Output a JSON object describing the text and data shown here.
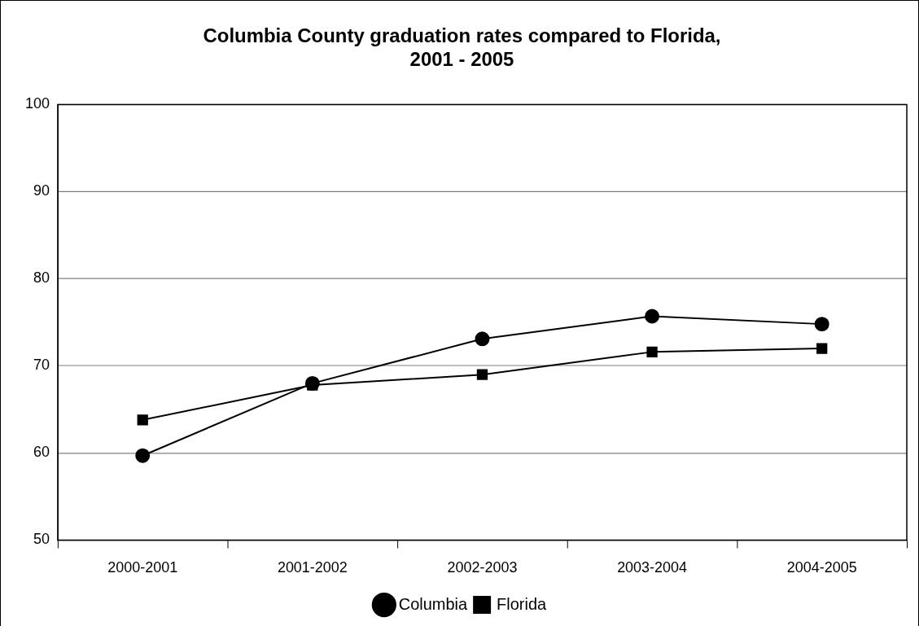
{
  "chart_data": {
    "type": "line",
    "title": [
      "Columbia County graduation rates compared to Florida,",
      "2001 - 2005"
    ],
    "categories": [
      "2000-2001",
      "2001-2002",
      "2002-2003",
      "2003-2004",
      "2004-2005"
    ],
    "series": [
      {
        "name": "Columbia",
        "color": "#000000",
        "marker": "circle",
        "values": [
          59.7,
          68.0,
          73.1,
          75.7,
          74.8
        ]
      },
      {
        "name": "Florida",
        "color": "#000000",
        "marker": "square",
        "values": [
          63.8,
          67.8,
          69.0,
          71.6,
          72.0
        ]
      }
    ],
    "ylim": [
      50,
      100
    ],
    "yticks": [
      50,
      60,
      70,
      80,
      90,
      100
    ],
    "grid": "y",
    "legend": "bottom",
    "line_style": "solid"
  }
}
